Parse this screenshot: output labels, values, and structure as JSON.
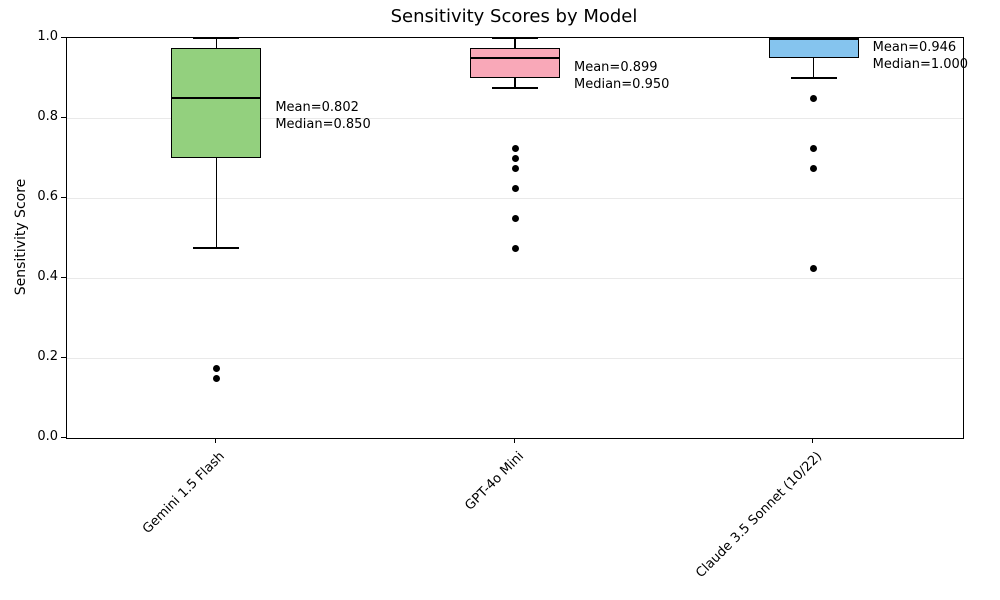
{
  "figure": {
    "title": "Sensitivity Scores by Model",
    "ylabel": "Sensitivity Score"
  },
  "chart_data": {
    "type": "box",
    "title": "Sensitivity Scores by Model",
    "xlabel": "",
    "ylabel": "Sensitivity Score",
    "ylim": [
      0.0,
      1.0
    ],
    "yticks": [
      0.0,
      0.2,
      0.4,
      0.6,
      0.8,
      1.0
    ],
    "ytick_labels": [
      "0.0",
      "0.2",
      "0.4",
      "0.6",
      "0.8",
      "1.0"
    ],
    "grid": "horizontal",
    "legend": "none",
    "categories": [
      "Gemini 1.5 Flash",
      "GPT-4o Mini",
      "Claude 3.5 Sonnet (10/22)"
    ],
    "series": [
      {
        "name": "Gemini 1.5 Flash",
        "box_color": "#93d07e",
        "q1": 0.7,
        "median": 0.85,
        "q3": 0.975,
        "whisker_low": 0.475,
        "whisker_high": 1.0,
        "outliers": [
          0.175,
          0.15
        ],
        "mean": 0.802,
        "annotation_lines": [
          "Mean=0.802",
          "Median=0.850"
        ]
      },
      {
        "name": "GPT-4o Mini",
        "box_color": "#f9a8b8",
        "q1": 0.9,
        "median": 0.95,
        "q3": 0.975,
        "whisker_low": 0.875,
        "whisker_high": 1.0,
        "outliers": [
          0.725,
          0.7,
          0.675,
          0.625,
          0.55,
          0.475
        ],
        "mean": 0.899,
        "annotation_lines": [
          "Mean=0.899",
          "Median=0.950"
        ]
      },
      {
        "name": "Claude 3.5 Sonnet (10/22)",
        "box_color": "#85c4ee",
        "q1": 0.95,
        "median": 1.0,
        "q3": 1.0,
        "whisker_low": 0.9,
        "whisker_high": 1.0,
        "outliers": [
          0.85,
          0.725,
          0.675,
          0.425
        ],
        "mean": 0.946,
        "annotation_lines": [
          "Mean=0.946",
          "Median=1.000"
        ]
      }
    ],
    "style_colors": {
      "box_edge": "#000000",
      "median_line": "#000000",
      "outlier": "#000000",
      "grid": "#e9e9e9",
      "spine": "#000000",
      "background": "#ffffff"
    }
  }
}
